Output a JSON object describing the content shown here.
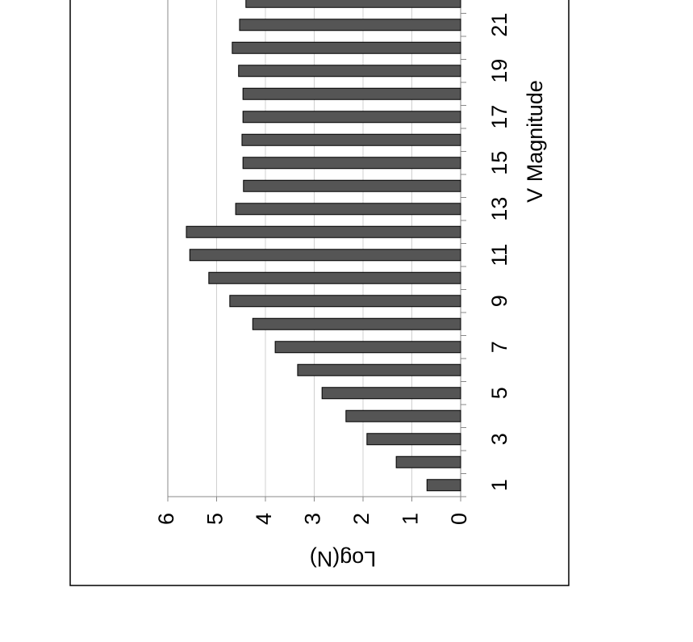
{
  "chart_data": {
    "type": "bar",
    "orientation": "rotated-ccw",
    "x_label": "V Magnitude",
    "y_label": "Log(N)",
    "categories": [
      "1",
      null,
      "3",
      null,
      "5",
      null,
      "7",
      null,
      "9",
      null,
      "11",
      null,
      "13",
      null,
      "15",
      null,
      "17",
      null,
      "19",
      null,
      "21",
      null
    ],
    "values": [
      0.69,
      1.32,
      1.92,
      2.35,
      2.84,
      3.34,
      3.8,
      4.26,
      4.73,
      5.16,
      5.55,
      5.62,
      4.61,
      4.45,
      4.46,
      4.48,
      4.46,
      4.46,
      4.55,
      4.68,
      4.53,
      4.4
    ],
    "color": "#555555",
    "ylim": [
      0,
      6
    ],
    "yticks": [
      0,
      1,
      2,
      3,
      4,
      5,
      6
    ],
    "grid": true
  }
}
